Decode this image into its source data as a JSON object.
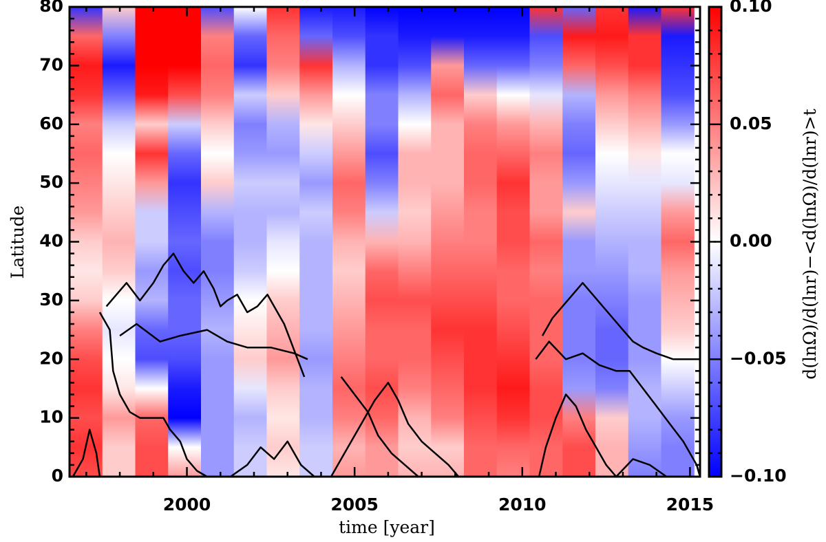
{
  "chart_data": {
    "type": "heatmap",
    "title": "",
    "xlabel": "time [year]",
    "ylabel": "Latitude",
    "colorbar_label": "d(lnΩ)/d(lnr)−<d(lnΩ)/d(lnr)>t",
    "xlim": [
      1996.5,
      2015.3
    ],
    "ylim": [
      0,
      80
    ],
    "x_ticks": [
      2000,
      2005,
      2010,
      2015
    ],
    "x_tick_labels": [
      "2000",
      "2005",
      "2010",
      "2015"
    ],
    "y_ticks": [
      0,
      10,
      20,
      30,
      40,
      50,
      60,
      70,
      80
    ],
    "y_tick_labels": [
      "0",
      "10",
      "20",
      "30",
      "40",
      "50",
      "60",
      "70",
      "80"
    ],
    "colorbar_range": [
      -0.1,
      0.1
    ],
    "colorbar_ticks": [
      0.1,
      0.05,
      0.0,
      -0.05,
      -0.1
    ],
    "colorbar_tick_labels": [
      "0.10",
      "0.05",
      "0.00",
      "−0.05",
      "−0.10"
    ],
    "colormap": {
      "low": "#0000ff",
      "mid": "#ffffff",
      "high": "#ff0000"
    },
    "column_width_years": 0.98,
    "column_starts": [
      1996.5,
      1997.48,
      1998.46,
      1999.44,
      2000.42,
      2001.4,
      2002.38,
      2003.36,
      2004.34,
      2005.32,
      2006.3,
      2007.28,
      2008.26,
      2009.24,
      2010.22,
      2011.2,
      2012.18,
      2013.16,
      2014.14
    ],
    "latitude_grid": [
      0,
      5,
      10,
      15,
      20,
      25,
      30,
      35,
      40,
      45,
      50,
      55,
      60,
      65,
      70,
      75,
      80
    ],
    "values": [
      [
        0.07,
        0.08,
        0.07,
        0.08,
        0.07,
        0.05,
        0.02,
        0.01,
        0.02,
        0.04,
        0.05,
        0.06,
        0.05,
        0.08,
        0.09,
        0.06,
        -0.08
      ],
      [
        0.02,
        0.02,
        0.04,
        0.01,
        0.0,
        -0.01,
        0.0,
        0.02,
        0.03,
        0.02,
        0.01,
        0.0,
        -0.02,
        -0.06,
        -0.09,
        -0.05,
        0.02
      ],
      [
        0.07,
        0.07,
        0.06,
        0.0,
        -0.07,
        -0.06,
        -0.03,
        -0.04,
        -0.02,
        -0.02,
        0.04,
        0.08,
        0.02,
        0.09,
        0.1,
        0.1,
        0.1
      ],
      [
        0.04,
        0.0,
        -0.1,
        -0.09,
        -0.07,
        -0.06,
        -0.06,
        -0.07,
        -0.06,
        -0.07,
        -0.08,
        -0.06,
        -0.02,
        0.07,
        0.1,
        0.1,
        0.1
      ],
      [
        -0.04,
        -0.04,
        -0.04,
        -0.04,
        -0.04,
        -0.03,
        -0.04,
        -0.05,
        -0.05,
        -0.03,
        0.02,
        0.0,
        0.02,
        0.05,
        0.06,
        0.05,
        -0.07
      ],
      [
        -0.02,
        -0.02,
        -0.03,
        -0.01,
        0.02,
        0.01,
        0.0,
        -0.02,
        -0.03,
        -0.03,
        -0.02,
        -0.04,
        -0.05,
        -0.02,
        -0.08,
        -0.06,
        0.0
      ],
      [
        0.01,
        0.02,
        0.01,
        0.02,
        0.04,
        0.03,
        0.02,
        0.0,
        -0.01,
        -0.03,
        -0.02,
        -0.04,
        -0.03,
        0.02,
        0.05,
        0.06,
        0.08
      ],
      [
        -0.02,
        -0.02,
        -0.03,
        -0.03,
        -0.04,
        -0.03,
        -0.03,
        -0.03,
        -0.03,
        -0.02,
        -0.04,
        -0.02,
        0.01,
        0.04,
        0.08,
        -0.06,
        -0.09
      ],
      [
        0.04,
        0.03,
        0.05,
        0.06,
        0.05,
        0.04,
        0.03,
        0.02,
        0.03,
        0.05,
        0.06,
        0.04,
        0.02,
        0.0,
        -0.03,
        -0.07,
        -0.09
      ],
      [
        0.04,
        0.04,
        0.06,
        0.07,
        0.06,
        0.06,
        0.07,
        0.06,
        0.03,
        -0.02,
        -0.05,
        -0.07,
        -0.05,
        -0.05,
        -0.08,
        -0.08,
        -0.1
      ],
      [
        0.03,
        0.02,
        0.03,
        0.05,
        0.06,
        0.06,
        0.07,
        0.05,
        0.03,
        0.02,
        0.03,
        0.03,
        0.0,
        -0.03,
        -0.07,
        -0.09,
        -0.1
      ],
      [
        0.03,
        0.02,
        0.05,
        0.06,
        0.07,
        0.08,
        0.07,
        0.06,
        0.05,
        0.04,
        0.03,
        0.03,
        0.03,
        0.06,
        0.04,
        -0.09,
        -0.1
      ],
      [
        0.06,
        0.06,
        0.07,
        0.08,
        0.08,
        0.08,
        0.07,
        0.06,
        0.05,
        0.05,
        0.06,
        0.06,
        0.05,
        0.02,
        -0.06,
        -0.09,
        -0.1
      ],
      [
        0.05,
        0.06,
        0.08,
        0.09,
        0.08,
        0.07,
        0.06,
        0.06,
        0.07,
        0.07,
        0.08,
        0.06,
        0.04,
        0.0,
        -0.06,
        -0.09,
        -0.1
      ],
      [
        0.06,
        0.06,
        0.07,
        0.07,
        0.06,
        0.06,
        0.06,
        0.05,
        0.06,
        0.04,
        0.04,
        0.05,
        0.03,
        -0.01,
        -0.05,
        -0.07,
        0.08
      ],
      [
        0.07,
        0.07,
        0.05,
        -0.04,
        -0.05,
        -0.05,
        -0.05,
        -0.04,
        -0.04,
        0.02,
        -0.04,
        -0.06,
        -0.05,
        -0.03,
        0.06,
        0.09,
        -0.06
      ],
      [
        0.03,
        0.03,
        0.02,
        -0.05,
        -0.06,
        -0.06,
        -0.05,
        -0.04,
        -0.03,
        -0.02,
        -0.01,
        0.0,
        0.02,
        0.04,
        0.07,
        0.09,
        0.08
      ],
      [
        -0.05,
        -0.04,
        -0.03,
        -0.03,
        -0.04,
        -0.04,
        -0.04,
        -0.03,
        -0.03,
        -0.02,
        -0.01,
        0.01,
        0.03,
        0.05,
        0.08,
        0.08,
        -0.09
      ],
      [
        -0.05,
        -0.05,
        -0.04,
        -0.02,
        0.0,
        0.02,
        0.03,
        0.04,
        0.06,
        0.04,
        -0.01,
        0.0,
        -0.04,
        -0.07,
        -0.08,
        -0.09,
        0.08
      ]
    ],
    "contours": [
      [
        [
          1996.6,
          0
        ],
        [
          1996.9,
          3
        ],
        [
          1997.1,
          8
        ],
        [
          1997.3,
          4
        ],
        [
          1997.4,
          0
        ]
      ],
      [
        [
          1997.4,
          28
        ],
        [
          1997.7,
          25
        ],
        [
          1997.8,
          18
        ],
        [
          1998.0,
          14
        ],
        [
          1998.3,
          11
        ],
        [
          1998.6,
          10
        ],
        [
          1999.0,
          10
        ],
        [
          1999.3,
          10
        ],
        [
          1999.5,
          8
        ],
        [
          1999.8,
          6
        ],
        [
          2000.0,
          3
        ],
        [
          2000.3,
          1
        ],
        [
          2000.6,
          0
        ]
      ],
      [
        [
          1997.6,
          29
        ],
        [
          1997.9,
          31
        ],
        [
          1998.2,
          33
        ],
        [
          1998.6,
          30
        ],
        [
          1999.0,
          33
        ],
        [
          1999.3,
          36
        ],
        [
          1999.6,
          38
        ],
        [
          1999.9,
          35
        ],
        [
          2000.2,
          33
        ],
        [
          2000.5,
          35
        ],
        [
          2000.8,
          32
        ],
        [
          2001.0,
          29
        ],
        [
          2001.2,
          30
        ],
        [
          2001.5,
          31
        ],
        [
          2001.8,
          28
        ],
        [
          2002.1,
          29
        ],
        [
          2002.4,
          31
        ],
        [
          2002.7,
          28
        ],
        [
          2002.9,
          26
        ],
        [
          2003.1,
          23
        ],
        [
          2003.3,
          20
        ],
        [
          2003.5,
          17
        ]
      ],
      [
        [
          1998.0,
          24
        ],
        [
          1998.5,
          26
        ],
        [
          1999.2,
          23
        ],
        [
          1999.8,
          24
        ],
        [
          2000.6,
          25
        ],
        [
          2001.2,
          23
        ],
        [
          2001.8,
          22
        ],
        [
          2002.5,
          22
        ],
        [
          2003.2,
          21
        ],
        [
          2003.6,
          20
        ]
      ],
      [
        [
          2001.3,
          0
        ],
        [
          2001.8,
          2
        ],
        [
          2002.2,
          5
        ],
        [
          2002.6,
          3
        ],
        [
          2003.0,
          6
        ],
        [
          2003.4,
          2
        ],
        [
          2003.8,
          0
        ]
      ],
      [
        [
          2004.3,
          0
        ],
        [
          2004.8,
          5
        ],
        [
          2005.2,
          9
        ],
        [
          2005.6,
          13
        ],
        [
          2006.0,
          16
        ],
        [
          2006.3,
          13
        ],
        [
          2006.6,
          9
        ],
        [
          2007.0,
          6
        ],
        [
          2007.4,
          4
        ],
        [
          2007.8,
          2
        ],
        [
          2008.1,
          0
        ]
      ],
      [
        [
          2004.6,
          17
        ],
        [
          2005.0,
          14
        ],
        [
          2005.4,
          11
        ],
        [
          2005.7,
          7
        ],
        [
          2006.1,
          4
        ],
        [
          2006.5,
          2
        ],
        [
          2006.9,
          0
        ]
      ],
      [
        [
          2010.5,
          0
        ],
        [
          2010.7,
          5
        ],
        [
          2011.0,
          10
        ],
        [
          2011.3,
          14
        ],
        [
          2011.6,
          12
        ],
        [
          2011.9,
          8
        ],
        [
          2012.2,
          5
        ],
        [
          2012.5,
          2
        ],
        [
          2012.8,
          0
        ]
      ],
      [
        [
          2010.6,
          24
        ],
        [
          2010.9,
          27
        ],
        [
          2011.2,
          29
        ],
        [
          2011.5,
          31
        ],
        [
          2011.8,
          33
        ],
        [
          2012.1,
          31
        ],
        [
          2012.4,
          29
        ],
        [
          2012.7,
          27
        ],
        [
          2013.0,
          25
        ],
        [
          2013.3,
          23
        ],
        [
          2013.6,
          22
        ],
        [
          2014.0,
          21
        ],
        [
          2014.5,
          20
        ],
        [
          2015.0,
          20
        ],
        [
          2015.3,
          20
        ]
      ],
      [
        [
          2010.4,
          20
        ],
        [
          2010.8,
          23
        ],
        [
          2011.3,
          20
        ],
        [
          2011.8,
          21
        ],
        [
          2012.3,
          19
        ],
        [
          2012.8,
          18
        ],
        [
          2013.2,
          18
        ],
        [
          2013.6,
          15
        ],
        [
          2014.0,
          12
        ],
        [
          2014.4,
          9
        ],
        [
          2014.8,
          6
        ],
        [
          2015.2,
          2
        ],
        [
          2015.3,
          0
        ]
      ],
      [
        [
          2012.8,
          0
        ],
        [
          2013.3,
          3
        ],
        [
          2013.8,
          2
        ],
        [
          2014.3,
          0
        ]
      ]
    ]
  }
}
